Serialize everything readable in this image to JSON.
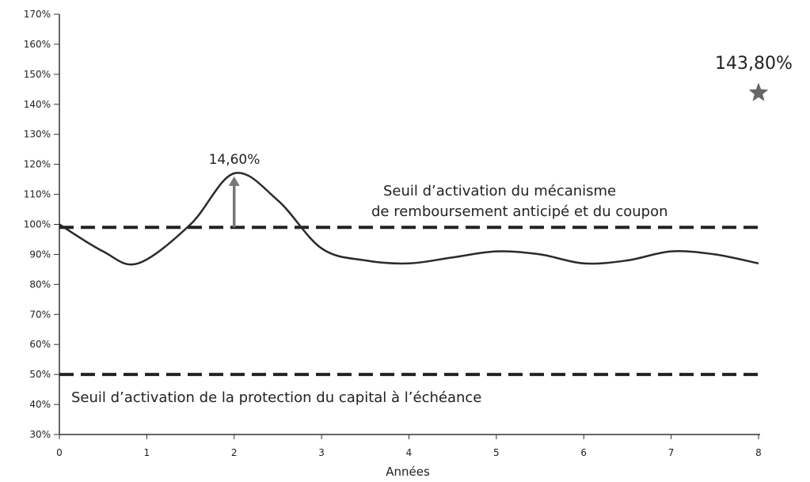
{
  "chart_data": {
    "type": "line",
    "title": "",
    "xlabel": "Années",
    "ylabel": "",
    "xlim": [
      0,
      8
    ],
    "ylim": [
      30,
      170
    ],
    "x_ticks": [
      "0",
      "1",
      "2",
      "3",
      "4",
      "5",
      "6",
      "7",
      "8"
    ],
    "y_ticks": [
      "30%",
      "40%",
      "50%",
      "60%",
      "70%",
      "80%",
      "90%",
      "100%",
      "110%",
      "120%",
      "130%",
      "140%",
      "150%",
      "160%",
      "170%"
    ],
    "grid": false,
    "series": [
      {
        "x": [
          0,
          0.5,
          0.9,
          1.5,
          2.0,
          2.5,
          3.0,
          3.5,
          4.0,
          4.5,
          5.0,
          5.5,
          6.0,
          6.5,
          7.0,
          7.5,
          8.0
        ],
        "y": [
          100,
          91,
          87,
          100,
          117,
          108,
          92,
          88,
          87,
          89,
          91,
          90,
          87,
          88,
          91,
          90,
          87
        ]
      }
    ],
    "thresholds": [
      {
        "y": 99,
        "label_line1": "Seuil d’activation du mécanisme",
        "label_line2": "de remboursement anticipé et du coupon"
      },
      {
        "y": 50,
        "label": "Seuil d’activation de la protection du capital à l’échéance"
      }
    ],
    "annotations": [
      {
        "x": 2,
        "from": 99,
        "to": 116,
        "label": "14,60%"
      },
      {
        "x": 8,
        "y": 143.8,
        "marker": "star",
        "label": "143,80%"
      }
    ]
  }
}
